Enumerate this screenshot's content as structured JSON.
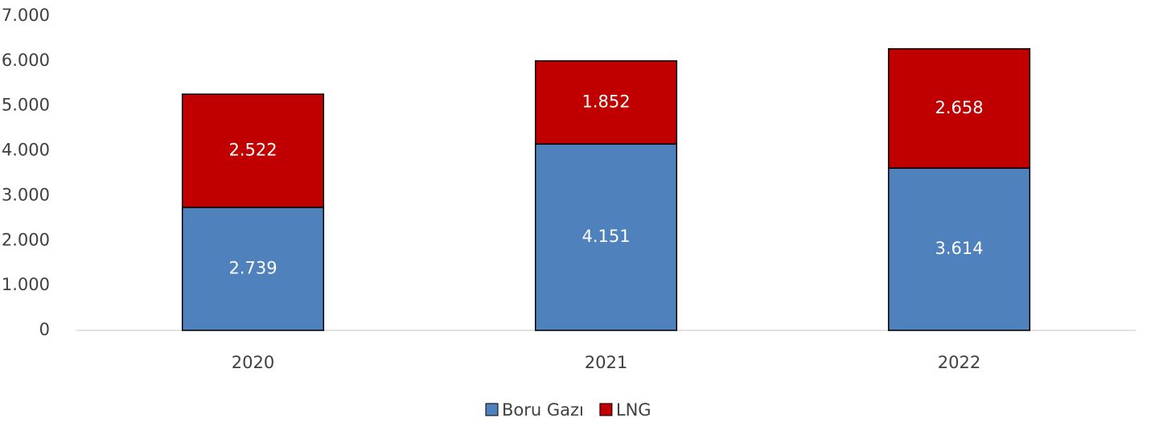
{
  "chart_data": {
    "type": "stacked_bar",
    "categories": [
      "2020",
      "2021",
      "2022"
    ],
    "series": [
      {
        "name": "Boru Gazı",
        "color": "#4f81bd",
        "values": [
          2739,
          4151,
          3614
        ],
        "value_labels": [
          "2.739",
          "4.151",
          "3.614"
        ]
      },
      {
        "name": "LNG",
        "color": "#c00000",
        "values": [
          2522,
          1852,
          2658
        ],
        "value_labels": [
          "2.522",
          "1.852",
          "2.658"
        ]
      }
    ],
    "ylim": [
      0,
      7000
    ],
    "yticks": [
      0,
      {
        "value": 1000,
        "label": "1.000"
      },
      {
        "value": 2000,
        "label": "2.000"
      },
      {
        "value": 3000,
        "label": "3.000"
      },
      {
        "value": 4000,
        "label": "4.000"
      },
      {
        "value": 5000,
        "label": "5.000"
      },
      {
        "value": 6000,
        "label": "6.000"
      },
      {
        "value": 7000,
        "label": "7.000"
      }
    ],
    "grid": false,
    "legend": "bottom"
  }
}
